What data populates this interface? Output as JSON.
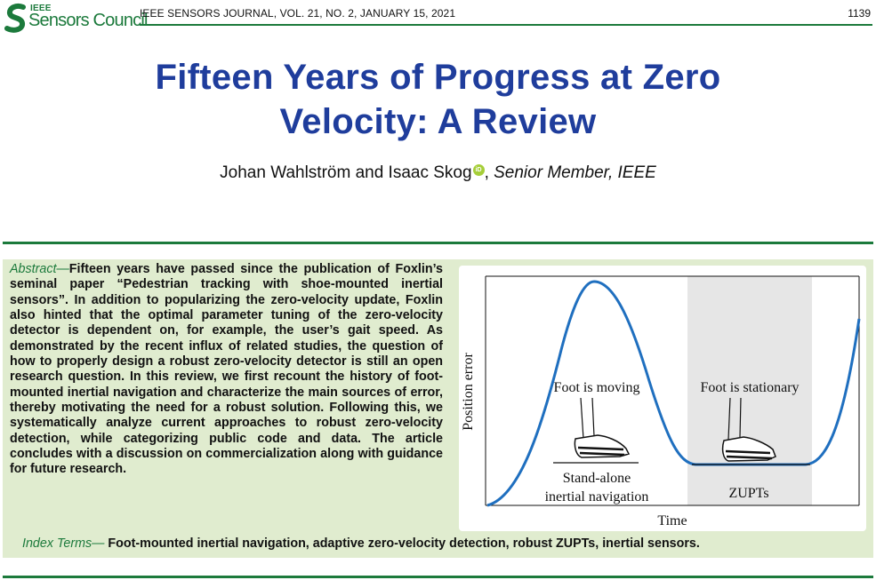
{
  "header": {
    "logo_ieee": "IEEE",
    "logo_council": "Sensors Council",
    "journal": "IEEE SENSORS JOURNAL, VOL. 21, NO. 2, JANUARY 15, 2021",
    "page_number": "1139"
  },
  "title": {
    "line1": "Fifteen Years of Progress at Zero",
    "line2": "Velocity: A Review"
  },
  "authors": {
    "names": "Johan Wahlström and Isaac Skog",
    "orcid_badge": "iD",
    "separator": ", ",
    "membership": "Senior Member, IEEE"
  },
  "abstract": {
    "label": "Abstract—",
    "text": "Fifteen years have passed since the publication of Foxlin’s seminal paper “Pedestrian tracking with shoe-mounted inertial sensors”. In addition to popularizing the zero-velocity update, Foxlin also hinted that the optimal parameter tuning of the zero-velocity detector is dependent on, for example, the user’s gait speed. As demonstrated by the recent influx of related studies, the question of how to properly design a robust zero-velocity detector is still an open research question. In this review, we first recount the history of foot-mounted inertial navigation and characterize the main sources of error, thereby motivating the need for a robust solution. Following this, we systematically analyze current approaches to robust zero-velocity detection, while categorizing public code and data. The article concludes with a discussion on commercialization along with guidance for future research."
  },
  "index_terms": {
    "label": "Index Terms—",
    "text": " Foot-mounted inertial navigation, adaptive zero-velocity detection, robust ZUPTs, inertial sensors."
  },
  "figure": {
    "ylabel": "Position error",
    "xlabel": "Time",
    "label_moving": "Foot is moving",
    "label_stationary": "Foot is stationary",
    "caption_left_line1": "Stand-alone",
    "caption_left_line2": "inertial navigation",
    "caption_right": "ZUPTs",
    "colors": {
      "curve": "#1f6fbf",
      "shaded_region": "#e6e6e6",
      "accent_green": "#1c7a3c",
      "title_blue": "#1f3d9c",
      "abstract_bg": "#e0eccf"
    }
  }
}
